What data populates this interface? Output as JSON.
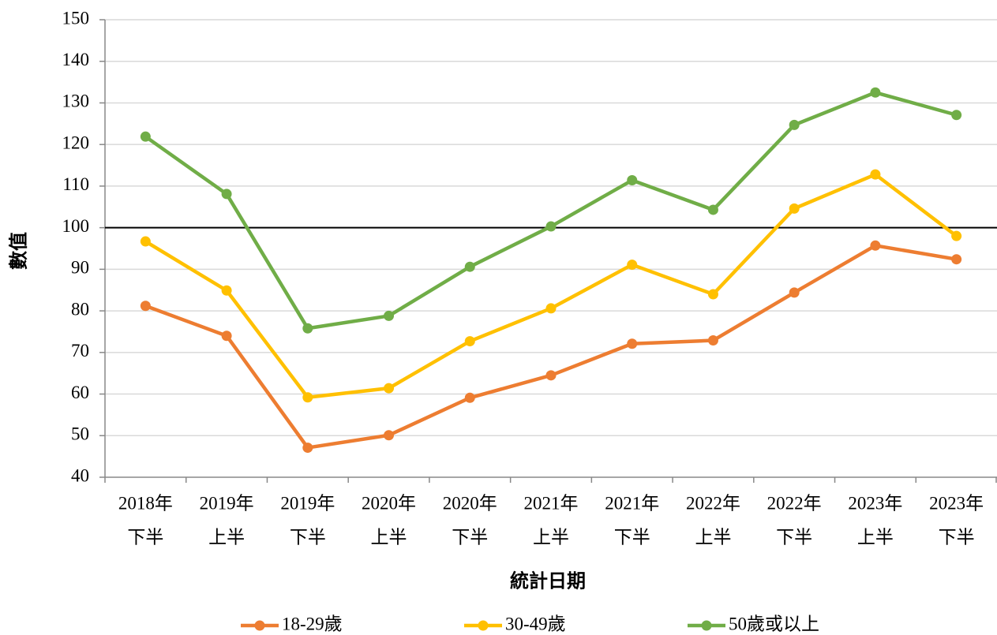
{
  "chart_data": {
    "type": "line",
    "x_label": "統計日期",
    "y_label": "數值",
    "categories": [
      [
        "2018年",
        "下半"
      ],
      [
        "2019年",
        "上半"
      ],
      [
        "2019年",
        "下半"
      ],
      [
        "2020年",
        "上半"
      ],
      [
        "2020年",
        "下半"
      ],
      [
        "2021年",
        "上半"
      ],
      [
        "2021年",
        "下半"
      ],
      [
        "2022年",
        "上半"
      ],
      [
        "2022年",
        "下半"
      ],
      [
        "2023年",
        "上半"
      ],
      [
        "2023年",
        "下半"
      ]
    ],
    "series": [
      {
        "name": "18-29歲",
        "color": "#ed7d31",
        "values": [
          81.2,
          74.0,
          47.1,
          50.1,
          59.1,
          64.5,
          72.1,
          72.9,
          84.4,
          95.7,
          92.4
        ]
      },
      {
        "name": "30-49歲",
        "color": "#ffc000",
        "values": [
          96.7,
          84.9,
          59.2,
          61.4,
          72.7,
          80.6,
          91.1,
          84.0,
          104.6,
          112.8,
          98.0
        ]
      },
      {
        "name": "50歲或以上",
        "color": "#70ad47",
        "values": [
          121.9,
          108.1,
          75.8,
          78.8,
          90.6,
          100.3,
          111.4,
          104.3,
          124.7,
          132.5,
          127.1
        ]
      }
    ],
    "reference_line": 100,
    "ylim": [
      40,
      150
    ],
    "yticks": [
      40,
      50,
      60,
      70,
      80,
      90,
      100,
      110,
      120,
      130,
      140,
      150
    ],
    "grid": true,
    "legend": "bottom"
  }
}
